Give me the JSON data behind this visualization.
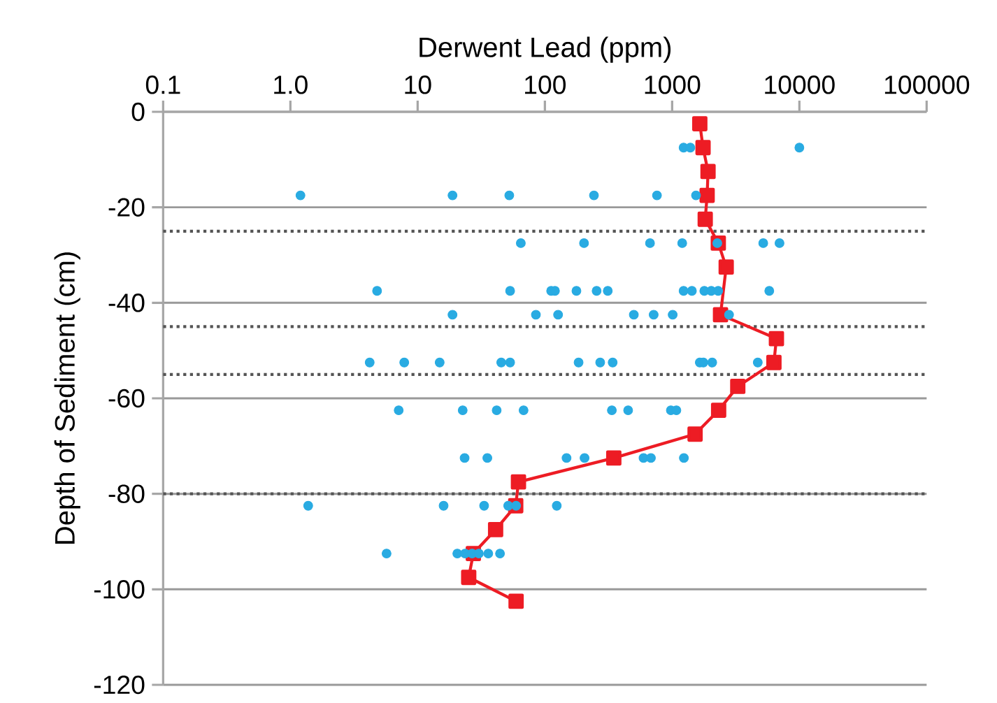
{
  "chart_data": {
    "type": "scatter",
    "xlabel": "Derwent Lead (ppm)",
    "ylabel": "Depth of Sediment (cm)",
    "log": "x",
    "grid": "y",
    "xlim": [
      0.1,
      100000
    ],
    "xticks": [
      0.1,
      {
        "value": 1,
        "label": "1.0"
      },
      10,
      100,
      1000,
      10000,
      100000
    ],
    "ylim": [
      -120,
      0
    ],
    "yticks": [
      -120,
      -100,
      -80,
      -60,
      -40,
      -20,
      0
    ],
    "ref_lines": [
      {
        "axis": "y",
        "value": -25,
        "color": "#555555",
        "line_style": "dotted"
      },
      {
        "axis": "y",
        "value": -45,
        "color": "#555555",
        "line_style": "dotted"
      },
      {
        "axis": "y",
        "value": -55,
        "color": "#555555",
        "line_style": "dotted"
      },
      {
        "axis": "y",
        "value": -80,
        "color": "#555555",
        "line_style": "dotted"
      }
    ],
    "series": [
      {
        "type": "scatter",
        "color": "#29abe2",
        "marker": "circle",
        "x": [
          1230,
          1390,
          10000,
          1.2,
          18.8,
          52.5,
          243,
          760,
          1540,
          64.7,
          203,
          670,
          1200,
          2265,
          5200,
          6980,
          4.8,
          53.3,
          112,
          120,
          177,
          255,
          312,
          1230,
          1430,
          1790,
          2030,
          2300,
          5800,
          18.8,
          85,
          127,
          500,
          716,
          1010,
          2800,
          4.2,
          7.85,
          14.9,
          45.4,
          53.3,
          184,
          272,
          341,
          1650,
          1760,
          2065,
          4710,
          7.1,
          22.6,
          41.8,
          68,
          336,
          451,
          977,
          1080,
          23.4,
          35.3,
          148,
          205,
          596,
          681,
          1237,
          1.38,
          16,
          33.3,
          51.5,
          59.4,
          124,
          5.7,
          20.5,
          23.6,
          26.8,
          30.3,
          35.9,
          44.4
        ],
        "values": [
          -7.5,
          -7.5,
          -7.5,
          -17.5,
          -17.5,
          -17.5,
          -17.5,
          -17.5,
          -17.5,
          -27.5,
          -27.5,
          -27.5,
          -27.5,
          -27.5,
          -27.5,
          -27.5,
          -37.5,
          -37.5,
          -37.5,
          -37.5,
          -37.5,
          -37.5,
          -37.5,
          -37.5,
          -37.5,
          -37.5,
          -37.5,
          -37.5,
          -37.5,
          -42.5,
          -42.5,
          -42.5,
          -42.5,
          -42.5,
          -42.5,
          -42.5,
          -52.5,
          -52.5,
          -52.5,
          -52.5,
          -52.5,
          -52.5,
          -52.5,
          -52.5,
          -52.5,
          -52.5,
          -52.5,
          -52.5,
          -62.5,
          -62.5,
          -62.5,
          -62.5,
          -62.5,
          -62.5,
          -62.5,
          -62.5,
          -72.5,
          -72.5,
          -72.5,
          -72.5,
          -72.5,
          -72.5,
          -72.5,
          -82.5,
          -82.5,
          -82.5,
          -82.5,
          -82.5,
          -82.5,
          -92.5,
          -92.5,
          -92.5,
          -92.5,
          -92.5,
          -92.5,
          -92.5
        ]
      },
      {
        "type": "line",
        "color": "#ed1c24",
        "marker": "square",
        "line_style": "solid",
        "x": [
          1650,
          1750,
          1915,
          1884,
          1820,
          2306,
          2660,
          2400,
          6600,
          6310,
          3280,
          2320,
          1515,
          348,
          62,
          59,
          41,
          27.4,
          25.2,
          59.4
        ],
        "values": [
          -2.5,
          -7.5,
          -12.5,
          -17.5,
          -22.5,
          -27.5,
          -32.5,
          -42.5,
          -47.5,
          -52.5,
          -57.5,
          -62.5,
          -67.5,
          -72.5,
          -77.5,
          -82.5,
          -87.5,
          -92.5,
          -97.5,
          -102.5
        ]
      }
    ]
  }
}
